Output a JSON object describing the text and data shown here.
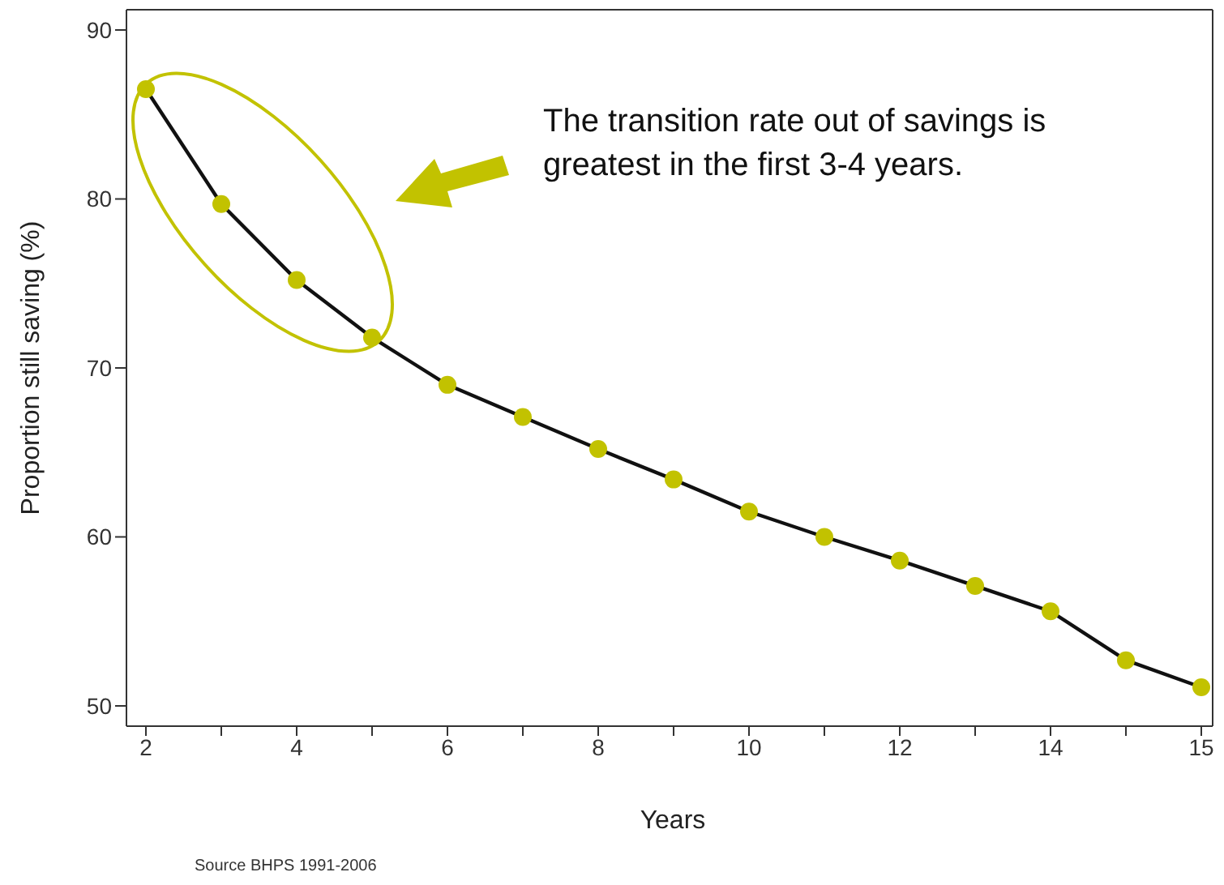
{
  "chart_data": {
    "type": "line",
    "xlabel": "Years",
    "ylabel": "Proportion still saving (%)",
    "categories": [
      "2",
      null,
      "4",
      null,
      "6",
      null,
      "8",
      null,
      "10",
      null,
      "12",
      null,
      "14",
      null,
      "15"
    ],
    "series": [
      {
        "color": "#c2c200",
        "values": [
          86.5,
          79.7,
          75.2,
          71.8,
          69.0,
          67.1,
          65.2,
          63.4,
          61.5,
          60.0,
          58.6,
          57.1,
          55.6,
          52.7,
          51.1
        ]
      }
    ],
    "ylim": [
      48.8,
      91.2
    ],
    "yticks": [
      50,
      60,
      70,
      80,
      90
    ],
    "grid": false,
    "legend": false,
    "marker": "circle",
    "line_style": "solid",
    "annotations": [
      "The transition rate out of savings is greatest in the first 3-4 years.",
      "Source BHPS 1991-2006"
    ]
  }
}
